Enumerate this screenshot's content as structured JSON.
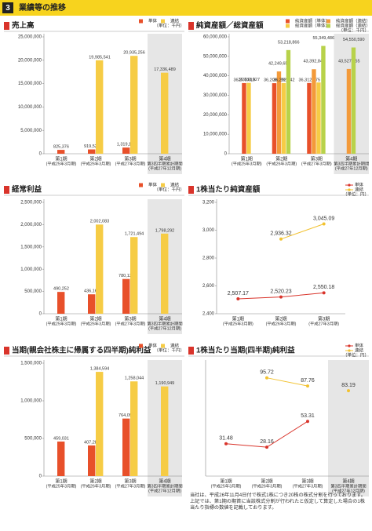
{
  "header": {
    "number": "3",
    "title": "業績等の推移"
  },
  "chart_data": [
    {
      "type": "bar",
      "title": "売上高",
      "unit": "（単位：千円）",
      "highlight_index": 3,
      "categories": [
        "第1期",
        "第2期",
        "第3期",
        "第4期"
      ],
      "category_sub": [
        [
          "(平成25年3月期)"
        ],
        [
          "(平成26年3月期)"
        ],
        [
          "(平成27年3月期)"
        ],
        [
          "第3四半期累計期間",
          "(平成27年12月期)"
        ]
      ],
      "series": [
        {
          "name": "単体",
          "color": "#e8502a",
          "values": [
            825376,
            919529,
            1319161,
            null
          ],
          "value_labels": [
            "825,376",
            "919,529",
            "1,319,161",
            null
          ]
        },
        {
          "name": "連結",
          "color": "#f6cc45",
          "values": [
            null,
            19985541,
            20935256,
            17336489
          ],
          "value_labels": [
            null,
            "19,985,541",
            "20,935,256",
            "17,336,489"
          ]
        }
      ],
      "ylim": [
        0,
        25000000
      ],
      "yticks": [
        {
          "value": 0,
          "label": "0"
        },
        {
          "value": 5000000,
          "label": "5,000,000"
        },
        {
          "value": 10000000,
          "label": "10,000,000"
        },
        {
          "value": 15000000,
          "label": "15,000,000"
        },
        {
          "value": 20000000,
          "label": "20,000,000"
        },
        {
          "value": 25000000,
          "label": "25,000,000"
        }
      ]
    },
    {
      "type": "bar",
      "title": "純資産額／総資産額",
      "unit": "（単位：千円）",
      "highlight_index": 3,
      "categories": [
        "第1期",
        "第2期",
        "第3期",
        "第4期"
      ],
      "category_sub": [
        [
          "(平成25年3月期)"
        ],
        [
          "(平成26年3月期)"
        ],
        [
          "(平成27年3月期)"
        ],
        [
          "第3四半期累計期間",
          "(平成27年12月期)"
        ]
      ],
      "series": [
        {
          "name": "純資産額（単体）",
          "color": "#e8502a",
          "values": [
            36276619,
            36209889,
            36312575,
            null
          ],
          "value_labels": [
            "36,276,619",
            "36,209,889",
            "36,312,575",
            null
          ]
        },
        {
          "name": "純資産額（連結）",
          "color": "#f39a3a",
          "values": [
            null,
            42249653,
            43392848,
            43527155
          ],
          "value_labels": [
            null,
            "42,249,653",
            "43,392,848",
            "43,527,155"
          ]
        },
        {
          "name": "総資産額（単体）",
          "color": "#f6cc45",
          "values": [
            36383927,
            36292642,
            36600000,
            null
          ],
          "value_labels": [
            "36,383,927",
            "36,292,642",
            null,
            null
          ]
        },
        {
          "name": "総資産額（連結）",
          "color": "#b8d24a",
          "values": [
            null,
            53218866,
            55349486,
            54550590
          ],
          "value_labels": [
            null,
            "53,218,866",
            "55,349,486",
            "54,550,590"
          ]
        }
      ],
      "ylim": [
        0,
        60000000
      ],
      "yticks": [
        {
          "value": 0,
          "label": "0"
        },
        {
          "value": 10000000,
          "label": "10,000,000"
        },
        {
          "value": 20000000,
          "label": "20,000,000"
        },
        {
          "value": 30000000,
          "label": "30,000,000"
        },
        {
          "value": 40000000,
          "label": "40,000,000"
        },
        {
          "value": 50000000,
          "label": "50,000,000"
        },
        {
          "value": 60000000,
          "label": "60,000,000"
        }
      ]
    },
    {
      "type": "bar",
      "title": "経常利益",
      "unit": "（単位：千円）",
      "highlight_index": 3,
      "categories": [
        "第1期",
        "第2期",
        "第3期",
        "第4期"
      ],
      "category_sub": [
        [
          "(平成25年3月期)"
        ],
        [
          "(平成26年3月期)"
        ],
        [
          "(平成27年3月期)"
        ],
        [
          "第3四半期累計期間",
          "(平成27年12月期)"
        ]
      ],
      "series": [
        {
          "name": "単体",
          "color": "#e8502a",
          "values": [
            490252,
            436164,
            780130,
            null
          ],
          "value_labels": [
            "490,252",
            "436,164",
            "780,130",
            null
          ]
        },
        {
          "name": "連結",
          "color": "#f6cc45",
          "values": [
            null,
            2002083,
            1721494,
            1798292
          ],
          "value_labels": [
            null,
            "2,002,083",
            "1,721,494",
            "1,798,292"
          ]
        }
      ],
      "ylim": [
        0,
        2500000
      ],
      "yticks": [
        {
          "value": 0,
          "label": "0"
        },
        {
          "value": 500000,
          "label": "500,000"
        },
        {
          "value": 1000000,
          "label": "1,000,000"
        },
        {
          "value": 1500000,
          "label": "1,500,000"
        },
        {
          "value": 2000000,
          "label": "2,000,000"
        },
        {
          "value": 2500000,
          "label": "2,500,000"
        }
      ]
    },
    {
      "type": "line",
      "title": "1株当たり純資産額",
      "unit": "（単位：円）",
      "categories": [
        "第1期",
        "第2期",
        "第3期"
      ],
      "category_sub": [
        [
          "(平成25年3月期)"
        ],
        [
          "(平成26年3月期)"
        ],
        [
          "(平成27年3月期)"
        ]
      ],
      "series": [
        {
          "name": "単体",
          "color": "#d9342b",
          "values": [
            2507.17,
            2520.23,
            2550.18
          ],
          "value_labels": [
            "2,507.17",
            "2,520.23",
            "2,550.18"
          ]
        },
        {
          "name": "連結",
          "color": "#f2c230",
          "values": [
            null,
            2936.32,
            3045.09
          ],
          "value_labels": [
            null,
            "2,936.32",
            "3,045.09"
          ]
        }
      ],
      "ylim": [
        2400,
        3200
      ],
      "yticks": [
        {
          "value": 2400,
          "label": "2,400"
        },
        {
          "value": 2600,
          "label": "2,600"
        },
        {
          "value": 2800,
          "label": "2,800"
        },
        {
          "value": 3000,
          "label": "3,000"
        },
        {
          "value": 3200,
          "label": "3,200"
        }
      ]
    },
    {
      "type": "bar",
      "title": "当期(親会社株主に帰属する四半期)純利益",
      "unit": "（単位：千円）",
      "highlight_index": 3,
      "categories": [
        "第1期",
        "第2期",
        "第3期",
        "第4期"
      ],
      "category_sub": [
        [
          "(平成25年3月期)"
        ],
        [
          "(平成26年3月期)"
        ],
        [
          "(平成27年3月期)"
        ],
        [
          "第3四半期累計期間",
          "(平成27年12月期)"
        ]
      ],
      "series": [
        {
          "name": "単体",
          "color": "#e8502a",
          "values": [
            459031,
            407284,
            764095,
            null
          ],
          "value_labels": [
            "459,031",
            "407,284",
            "764,095",
            null
          ]
        },
        {
          "name": "連結",
          "color": "#f6cc45",
          "values": [
            null,
            1384594,
            1258044,
            1190949
          ],
          "value_labels": [
            null,
            "1,384,594",
            "1,258,044",
            "1,190,949"
          ]
        }
      ],
      "ylim": [
        0,
        1500000
      ],
      "yticks": [
        {
          "value": 0,
          "label": "0"
        },
        {
          "value": 500000,
          "label": "500,000"
        },
        {
          "value": 1000000,
          "label": "1,000,000"
        },
        {
          "value": 1500000,
          "label": "1,500,000"
        }
      ]
    },
    {
      "type": "line",
      "title": "1株当たり当期(四半期)純利益",
      "unit": "（単位：円）",
      "highlight_index": 3,
      "categories": [
        "第1期",
        "第2期",
        "第3期",
        "第4期"
      ],
      "category_sub": [
        [
          "(平成25年3月期)"
        ],
        [
          "(平成26年3月期)"
        ],
        [
          "(平成27年3月期)"
        ],
        [
          "第3四半期累計期間",
          "(平成27年12月期)"
        ]
      ],
      "series": [
        {
          "name": "単体",
          "color": "#d9342b",
          "values": [
            31.48,
            28.16,
            53.31,
            null
          ]
        },
        {
          "name": "連結",
          "color": "#f2c230",
          "values": [
            null,
            95.72,
            87.76,
            83.19
          ]
        }
      ],
      "ylim": [
        0,
        110
      ]
    }
  ],
  "footnote": "当社は、平成26年11月4日付で株式1株につき20株の株式分割を行っております。上記では、第1期の期首に当該株式分割が行われたと仮定して算定した場合の1株当たり指標の数値を記載しております。"
}
